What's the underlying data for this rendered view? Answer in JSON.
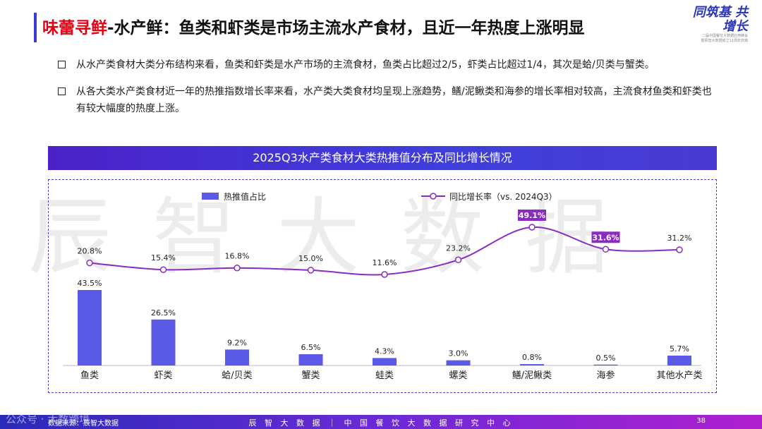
{
  "header": {
    "title_highlight": "味蕾寻鲜",
    "title_rest": "-水产鲜：鱼类和虾类是市场主流水产食材，且近一年热度上涨明显",
    "logo_line1": "同筑基 共增长",
    "logo_line2": "二届中国餐饮大数据应用峰会",
    "logo_line3": "暨辰智大数据成立11周年庆典"
  },
  "bullets": [
    "从水产类食材大类分布结构来看，鱼类和虾类是水产市场的主流食材，鱼类占比超过2/5，虾类占比超过1/4，其次是蛤/贝类与蟹类。",
    "从各大类水产类食材近一年的热推指数增长率来看，水产类大类食材均呈现上涨趋势，鳝/泥鳅类和海参的增长率相对较高，主流食材鱼类和虾类也有较大幅度的热度上涨。"
  ],
  "watermark": "辰智大数据",
  "chart_data": {
    "type": "bar",
    "title": "2025Q3水产类食材大类热推值分布及同比增长情况",
    "categories": [
      "鱼类",
      "虾类",
      "蛤/贝类",
      "蟹类",
      "蛙类",
      "螺类",
      "鳝/泥鳅类",
      "海参",
      "其他水产类"
    ],
    "series": [
      {
        "name": "热推值占比",
        "type": "bar",
        "values": [
          43.5,
          26.5,
          9.2,
          6.5,
          4.3,
          3.0,
          0.8,
          0.5,
          5.7
        ],
        "labels": [
          "43.5%",
          "26.5%",
          "9.2%",
          "6.5%",
          "4.3%",
          "3.0%",
          "0.8%",
          "0.5%",
          "5.7%"
        ]
      },
      {
        "name": "同比增长率（vs. 2024Q3）",
        "type": "line",
        "values": [
          20.8,
          15.4,
          16.8,
          15.0,
          11.6,
          23.2,
          49.1,
          31.6,
          31.2
        ],
        "labels": [
          "20.8%",
          "15.4%",
          "16.8%",
          "15.0%",
          "11.6%",
          "23.2%",
          "49.1%",
          "31.6%",
          "31.2%"
        ],
        "highlighted": [
          "鳝/泥鳅类",
          "海参"
        ]
      }
    ],
    "legend_position": "top",
    "grid": false,
    "colors": {
      "bar": "#5a5ae6",
      "line": "#8a2bc2",
      "highlight_bg": "#8a2bc2"
    }
  },
  "footer": {
    "source": "数据来源：辰智大数据",
    "center": "辰 智 大 数 据 ｜ 中 国 餐 饮 大 数 据 研 究 中 心",
    "page": "38",
    "wechat": "公众号 · 大数跨境"
  }
}
